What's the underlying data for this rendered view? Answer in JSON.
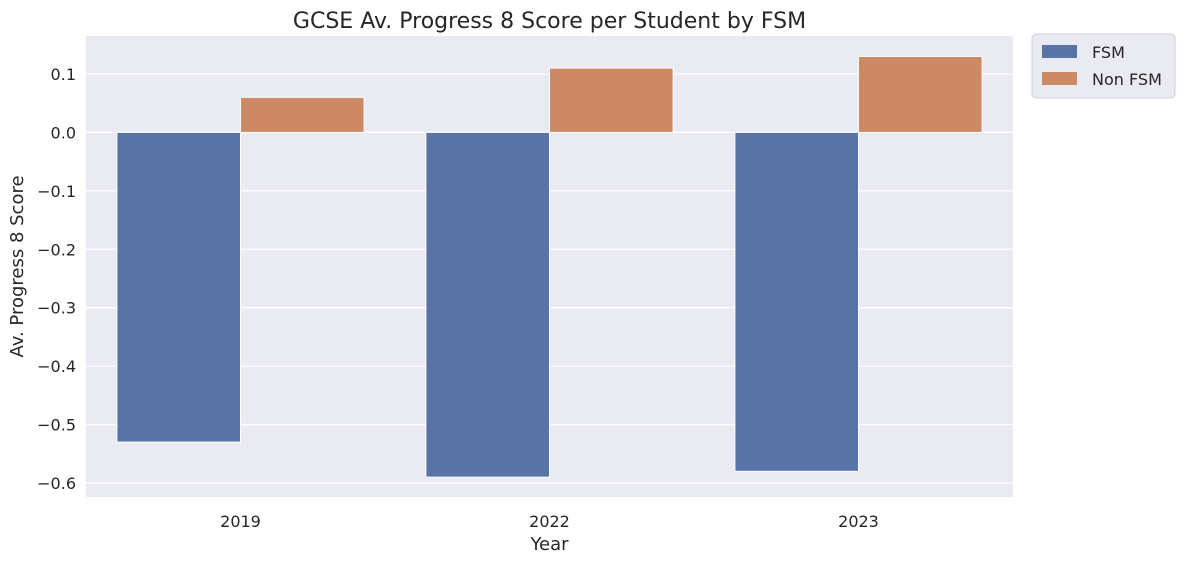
{
  "chart_data": {
    "type": "bar",
    "title": "GCSE Av. Progress 8 Score per Student by FSM",
    "xlabel": "Year",
    "ylabel": "Av. Progress 8 Score",
    "categories": [
      "2019",
      "2022",
      "2023"
    ],
    "series": [
      {
        "name": "FSM",
        "values": [
          -0.53,
          -0.59,
          -0.58
        ],
        "color": "#5874a6"
      },
      {
        "name": "Non FSM",
        "values": [
          0.06,
          0.11,
          0.13
        ],
        "color": "#cc8963"
      }
    ],
    "ylim": [
      -0.624,
      0.165
    ],
    "yticks": [
      0.1,
      0.0,
      -0.1,
      -0.2,
      -0.3,
      -0.4,
      -0.5,
      -0.6
    ],
    "ytick_labels": [
      "0.1",
      "0.0",
      "−0.1",
      "−0.2",
      "−0.3",
      "−0.4",
      "−0.5",
      "−0.6"
    ],
    "grid": true,
    "legend_position": "outside-top-right",
    "plot_background": "#eaeaf2",
    "grid_color": "#ffffff"
  }
}
